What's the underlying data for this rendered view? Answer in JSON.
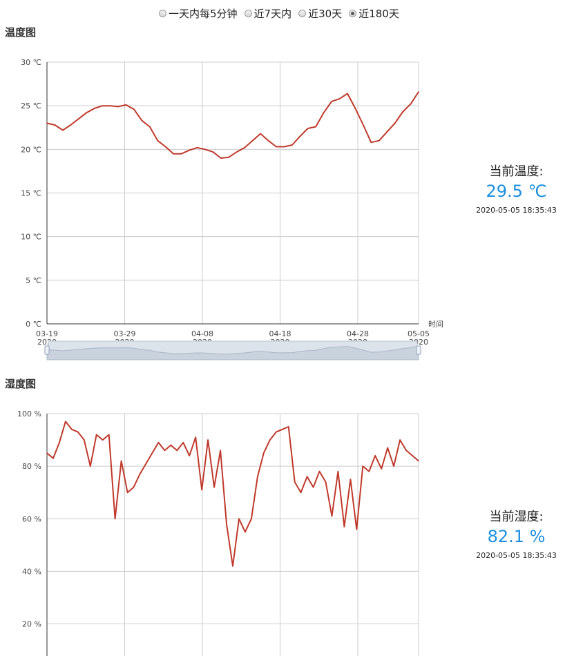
{
  "range_options": [
    {
      "label": "一天内每5分钟",
      "selected": false
    },
    {
      "label": "近7天内",
      "selected": false
    },
    {
      "label": "近30天",
      "selected": false
    },
    {
      "label": "近180天",
      "selected": true
    }
  ],
  "temperature": {
    "title": "温度图",
    "current_label": "当前温度:",
    "current_value": "29.5 ℃",
    "updated_at": "2020-05-05 18:35:43"
  },
  "humidity": {
    "title": "湿度图",
    "current_label": "当前湿度:",
    "current_value": "82.1 %",
    "updated_at": "2020-05-05 18:35:43"
  },
  "chart_data": [
    {
      "type": "line",
      "xlabel": "时间",
      "ylabel": "",
      "ylim": [
        0,
        30
      ],
      "y_ticks": [
        "0 ℃",
        "5 ℃",
        "10 ℃",
        "15 ℃",
        "20 ℃",
        "25 ℃",
        "30 ℃"
      ],
      "x_ticks": [
        {
          "date": "03-19",
          "year": "2020"
        },
        {
          "date": "03-29",
          "year": "2020"
        },
        {
          "date": "04-08",
          "year": "2020"
        },
        {
          "date": "04-18",
          "year": "2020"
        },
        {
          "date": "04-28",
          "year": "2020"
        },
        {
          "date": "05-05",
          "year": "2020"
        }
      ],
      "line_color": "#c0392b",
      "has_data_zoom": true,
      "series": [
        {
          "x": [
            0,
            1,
            2,
            3,
            4,
            5,
            6,
            7,
            8,
            9,
            10,
            11,
            12,
            13,
            14,
            15,
            16,
            17,
            18,
            19,
            20,
            21,
            22,
            23,
            24,
            25,
            26,
            27,
            28,
            29,
            30,
            31,
            32,
            33,
            34,
            35,
            36,
            37,
            38,
            39,
            40,
            41,
            42,
            43,
            44,
            45,
            46,
            47
          ],
          "values": [
            23.0,
            22.8,
            22.2,
            22.8,
            23.5,
            24.2,
            24.7,
            25.0,
            25.0,
            24.9,
            25.1,
            24.6,
            23.3,
            22.6,
            21.0,
            20.3,
            19.5,
            19.5,
            19.9,
            20.2,
            20.0,
            19.7,
            19.0,
            19.1,
            19.7,
            20.2,
            21.0,
            21.8,
            21.0,
            20.3,
            20.3,
            20.5,
            21.5,
            22.4,
            22.6,
            24.2,
            25.5,
            25.8,
            26.4,
            24.7,
            22.8,
            20.8,
            21.0,
            22.0,
            23.0,
            24.3,
            25.2,
            26.6
          ]
        }
      ]
    },
    {
      "type": "line",
      "xlabel": "",
      "ylabel": "",
      "ylim": [
        0,
        100
      ],
      "y_ticks": [
        "20 %",
        "40 %",
        "60 %",
        "80 %",
        "100 %"
      ],
      "line_color": "#c0392b",
      "series": [
        {
          "x": [
            0,
            1,
            2,
            3,
            4,
            5,
            6,
            7,
            8,
            9,
            10,
            11,
            12,
            13,
            14,
            15,
            16,
            17,
            18,
            19,
            20,
            21,
            22,
            23,
            24,
            25,
            26,
            27,
            28,
            29,
            30,
            31,
            32,
            33,
            34,
            35,
            36,
            37,
            38,
            39,
            40,
            41,
            42,
            43,
            44,
            45,
            46,
            47,
            48,
            49,
            50,
            51,
            52,
            53,
            54,
            55,
            56,
            57,
            58,
            59,
            60
          ],
          "values": [
            85,
            83,
            89,
            97,
            94,
            93,
            90,
            80,
            92,
            90,
            92,
            60,
            82,
            70,
            72,
            77,
            81,
            85,
            89,
            86,
            88,
            86,
            89,
            84,
            91,
            71,
            90,
            72,
            86,
            58,
            42,
            60,
            55,
            60,
            76,
            85,
            90,
            93,
            94,
            95,
            74,
            70,
            76,
            72,
            78,
            74,
            61,
            78,
            57,
            75,
            56,
            80,
            78,
            84,
            79,
            87,
            80,
            90,
            86,
            84,
            82
          ]
        }
      ]
    }
  ]
}
